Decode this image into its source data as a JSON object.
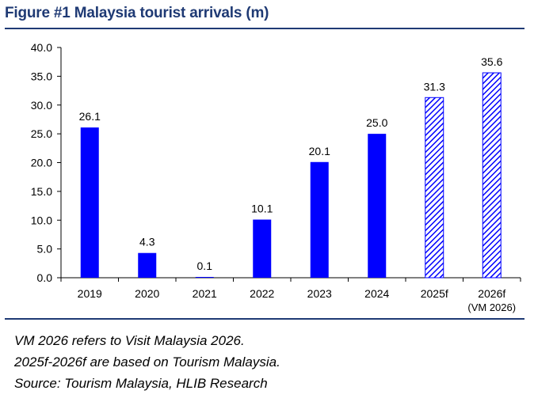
{
  "title": "Figure #1 Malaysia tourist arrivals (m)",
  "chart_data": {
    "type": "bar",
    "categories": [
      "2019",
      "2020",
      "2021",
      "2022",
      "2023",
      "2024",
      "2025f",
      "2026f"
    ],
    "category_sublabels": [
      "",
      "",
      "",
      "",
      "",
      "",
      "",
      "(VM 2026)"
    ],
    "values": [
      26.1,
      4.3,
      0.1,
      10.1,
      20.1,
      25.0,
      31.3,
      35.6
    ],
    "value_labels": [
      "26.1",
      "4.3",
      "0.1",
      "10.1",
      "20.1",
      "25.0",
      "31.3",
      "35.6"
    ],
    "forecast": [
      false,
      false,
      false,
      false,
      false,
      false,
      true,
      true
    ],
    "title": "Figure #1 Malaysia tourist arrivals (m)",
    "xlabel": "",
    "ylabel": "",
    "ylim": [
      0,
      40
    ],
    "yticks": [
      "0.0",
      "5.0",
      "10.0",
      "15.0",
      "20.0",
      "25.0",
      "30.0",
      "35.0",
      "40.0"
    ],
    "grid": false,
    "legend": "none",
    "colors": {
      "actual": "#0000ff",
      "forecast_hatch": "#0000ff",
      "axis": "#000000"
    }
  },
  "notes": [
    "VM 2026 refers to Visit Malaysia 2026.",
    "2025f-2026f are based on Tourism Malaysia.",
    "Source: Tourism Malaysia, HLIB Research"
  ]
}
